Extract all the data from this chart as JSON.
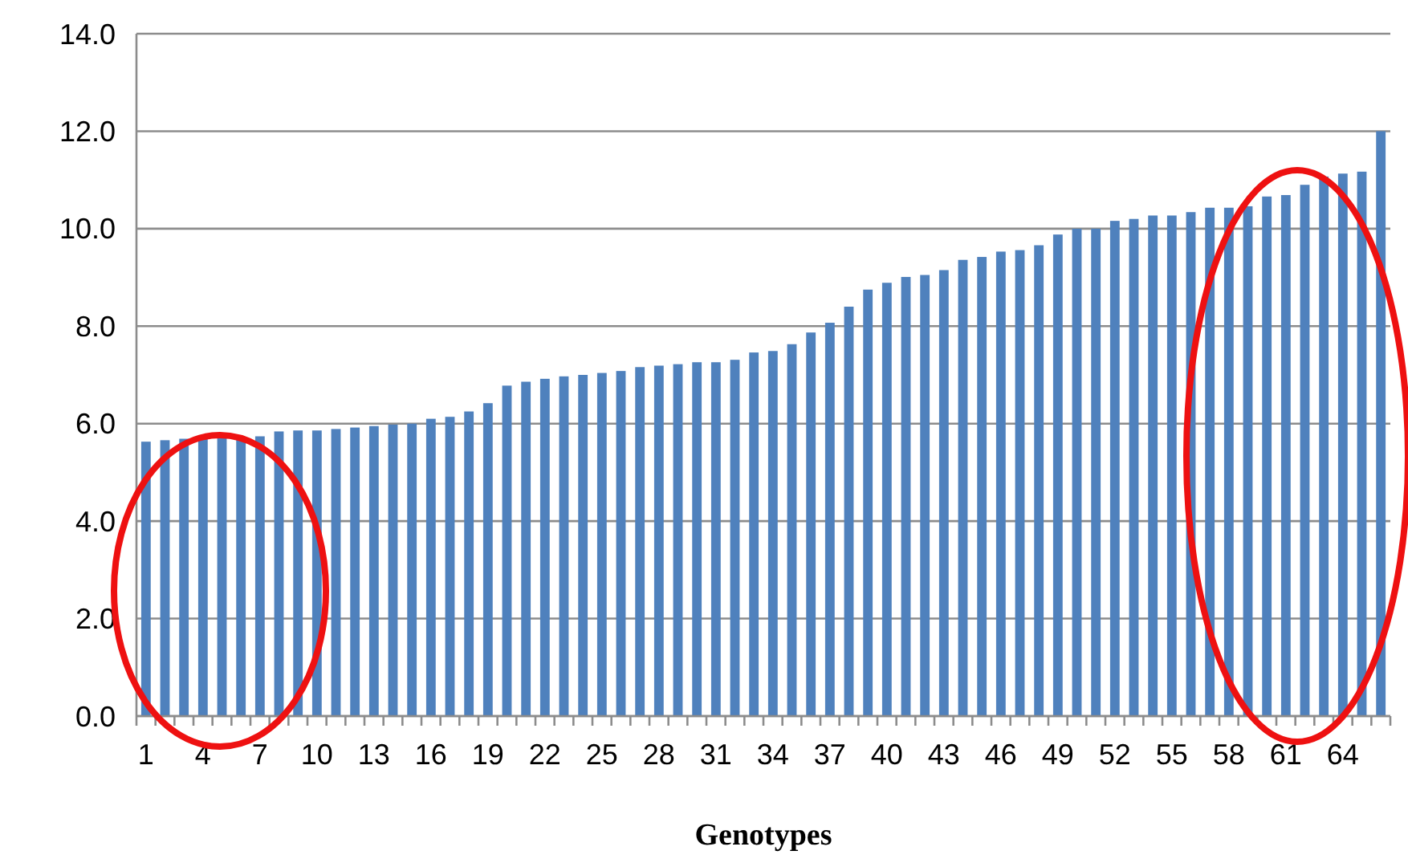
{
  "chart_data": {
    "type": "bar",
    "xlabel": "Genotypes",
    "categories": [
      "1",
      null,
      null,
      "4",
      null,
      null,
      "7",
      null,
      null,
      "10",
      null,
      null,
      "13",
      null,
      null,
      "16",
      null,
      null,
      "19",
      null,
      null,
      "22",
      null,
      null,
      "25",
      null,
      null,
      "28",
      null,
      null,
      "31",
      null,
      null,
      "34",
      null,
      null,
      "37",
      null,
      null,
      "40",
      null,
      null,
      "43",
      null,
      null,
      "46",
      null,
      null,
      "49",
      null,
      null,
      "52",
      null,
      null,
      "55",
      null,
      null,
      "58",
      null,
      null,
      "61",
      null,
      null,
      "64",
      null,
      null
    ],
    "values": [
      5.63,
      5.66,
      5.69,
      5.71,
      5.71,
      5.71,
      5.74,
      5.84,
      5.86,
      5.86,
      5.89,
      5.92,
      5.95,
      5.98,
      6.0,
      6.1,
      6.14,
      6.25,
      6.42,
      6.78,
      6.86,
      6.92,
      6.97,
      7.0,
      7.04,
      7.08,
      7.16,
      7.19,
      7.22,
      7.26,
      7.26,
      7.31,
      7.46,
      7.49,
      7.63,
      7.87,
      8.07,
      8.4,
      8.75,
      8.89,
      9.01,
      9.05,
      9.15,
      9.36,
      9.42,
      9.53,
      9.56,
      9.66,
      9.88,
      10.0,
      10.0,
      10.16,
      10.2,
      10.27,
      10.27,
      10.34,
      10.43,
      10.43,
      10.46,
      10.66,
      10.69,
      10.9,
      11.07,
      11.13,
      11.17,
      12.0
    ],
    "color": "#4f81bd",
    "ylim": [
      0,
      14
    ],
    "yticks": [
      {
        "value": 0,
        "label": "0.0"
      },
      {
        "value": 2,
        "label": "2.0"
      },
      {
        "value": 4,
        "label": "4.0"
      },
      {
        "value": 6,
        "label": "6.0"
      },
      {
        "value": 8,
        "label": "8.0"
      },
      {
        "value": 10,
        "label": "10.0"
      },
      {
        "value": 12,
        "label": "12.0"
      },
      {
        "value": 14,
        "label": "14.0"
      }
    ],
    "grid": "y"
  }
}
